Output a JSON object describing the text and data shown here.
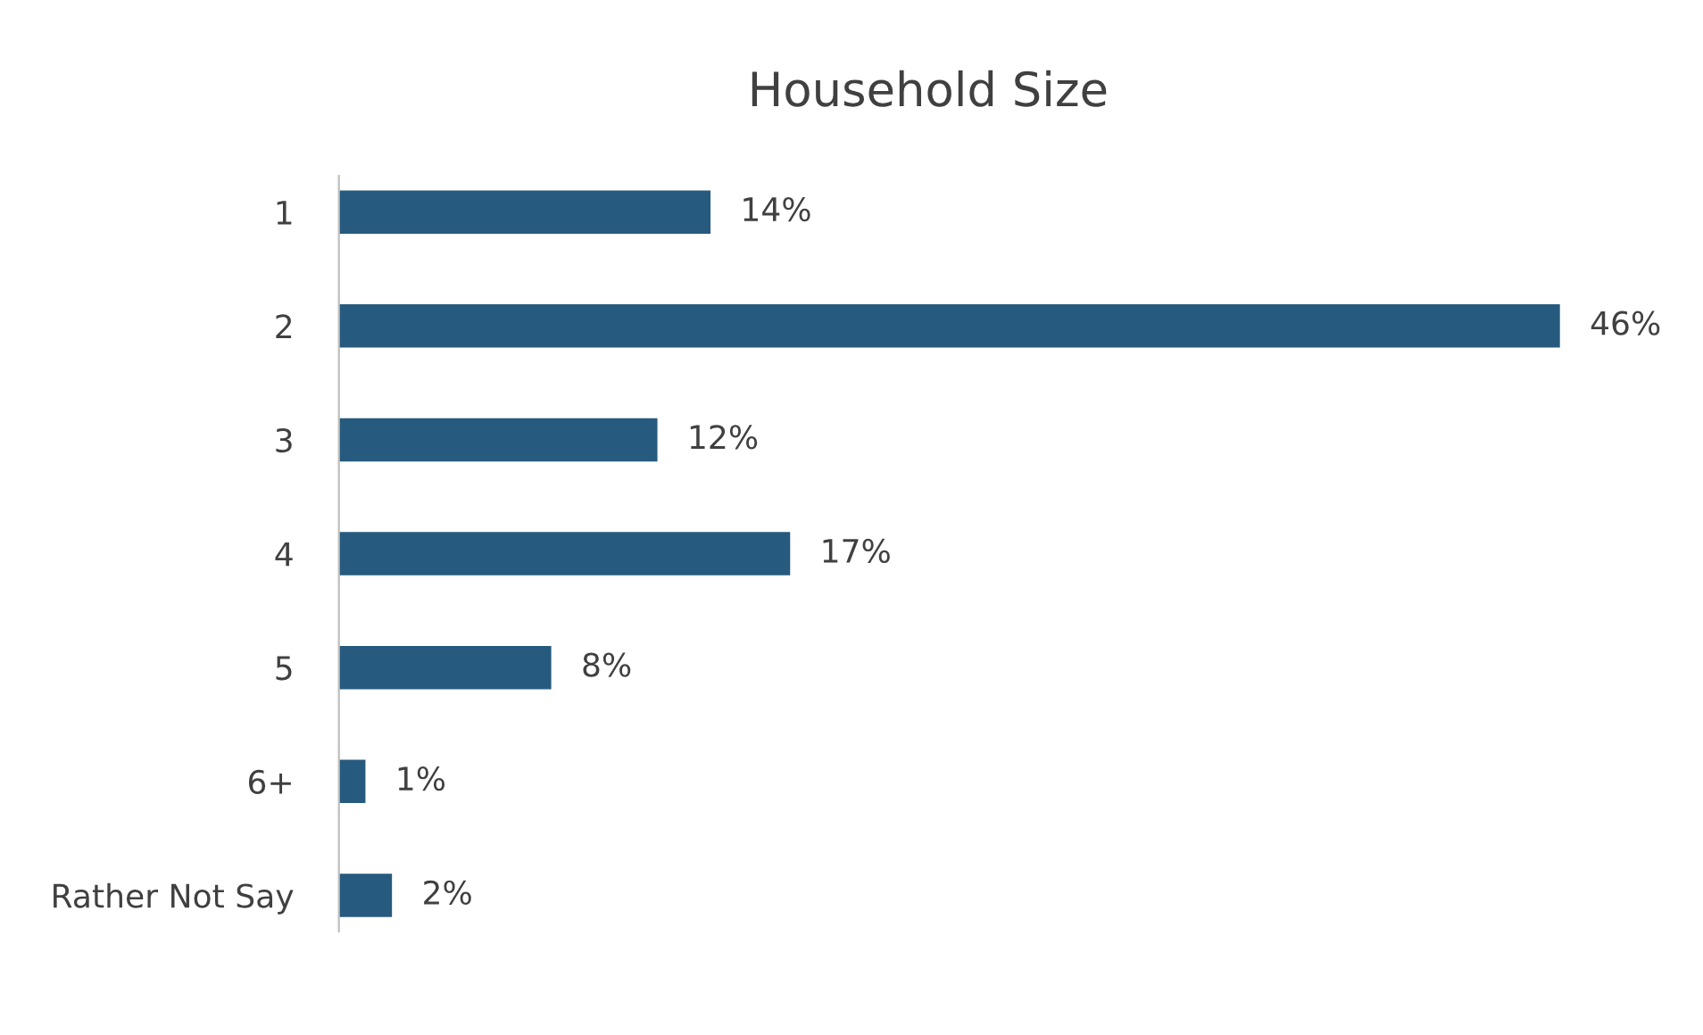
{
  "chart_data": {
    "type": "bar",
    "orientation": "horizontal",
    "title": "Household Size",
    "categories": [
      "1",
      "2",
      "3",
      "4",
      "5",
      "6+",
      "Rather Not Say"
    ],
    "values": [
      14,
      46,
      12,
      17,
      8,
      1,
      2
    ],
    "value_labels": [
      "14%",
      "46%",
      "12%",
      "17%",
      "8%",
      "1%",
      "2%"
    ],
    "color": "#265a7e",
    "grid": false,
    "legend": false
  }
}
